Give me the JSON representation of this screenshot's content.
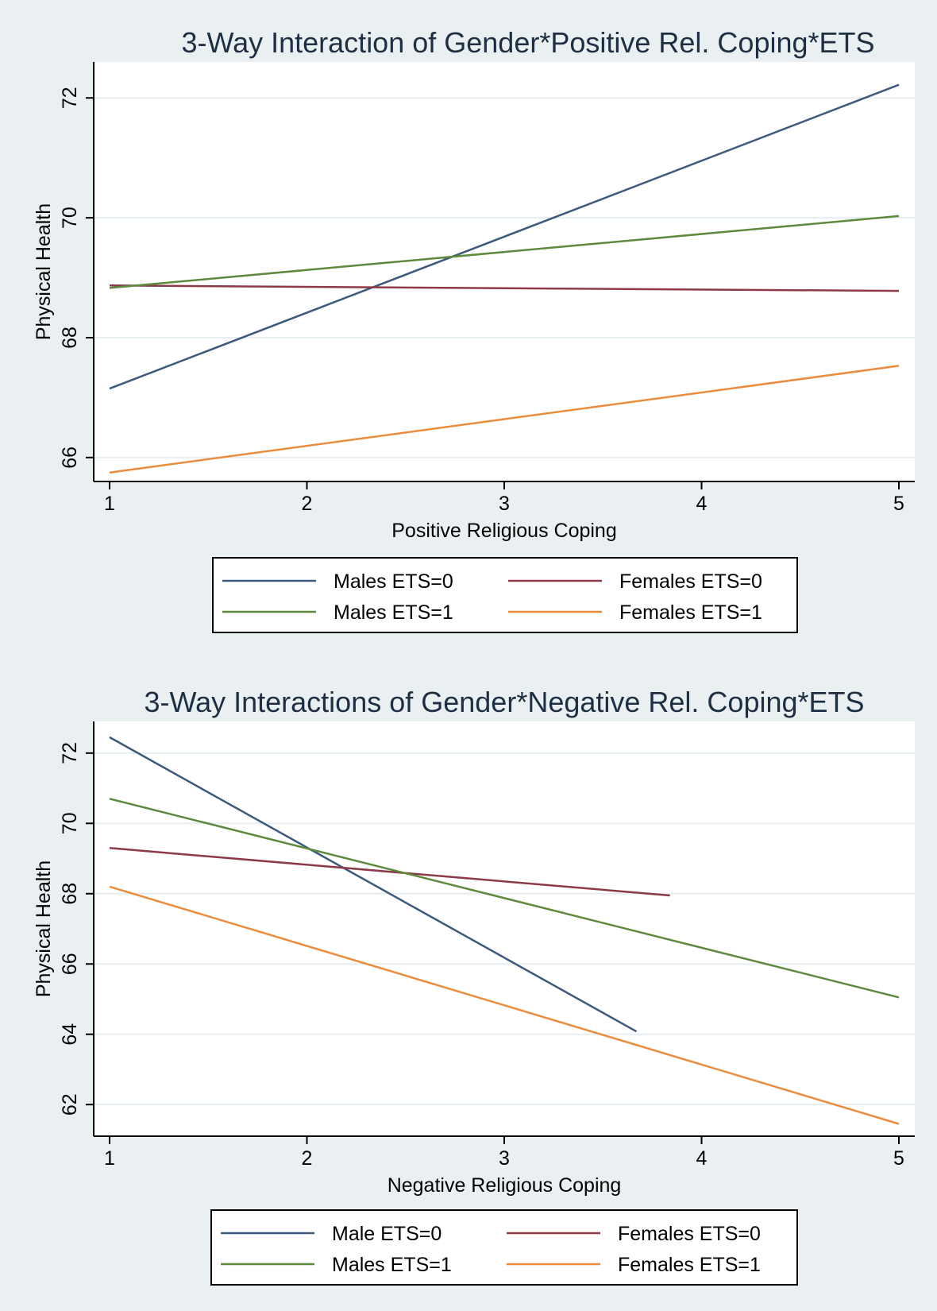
{
  "colors": {
    "background": "#eaf0f2",
    "plot_background": "#ffffff",
    "grid": "#e6eef2",
    "axis": "#000000",
    "blue": "#3c5a7e",
    "red": "#8c3a48",
    "green": "#5d8a3c",
    "orange": "#ea8c3e"
  },
  "chart_data": [
    {
      "type": "line",
      "title": "3-Way Interaction of Gender*Positive Rel. Coping*ETS",
      "xlabel": "Positive Religious Coping",
      "ylabel": "Physical Health",
      "xlim": [
        1,
        5
      ],
      "ylim": [
        65.6,
        72.6
      ],
      "xticks": [
        1,
        2,
        3,
        4,
        5
      ],
      "yticks": [
        66,
        68,
        70,
        72
      ],
      "grid": true,
      "legend_position": "bottom",
      "series": [
        {
          "name": "Males ETS=0",
          "color": "#3c5a7e",
          "x": [
            1,
            5
          ],
          "y": [
            67.15,
            72.22
          ]
        },
        {
          "name": "Females ETS=0",
          "color": "#8c3a48",
          "x": [
            1,
            5
          ],
          "y": [
            68.87,
            68.78
          ]
        },
        {
          "name": "Males ETS=1",
          "color": "#5d8a3c",
          "x": [
            1,
            5
          ],
          "y": [
            68.83,
            70.03
          ]
        },
        {
          "name": "Females ETS=1",
          "color": "#ea8c3e",
          "x": [
            1,
            5
          ],
          "y": [
            65.75,
            67.53
          ]
        }
      ]
    },
    {
      "type": "line",
      "title": "3-Way Interactions of Gender*Negative Rel. Coping*ETS",
      "xlabel": "Negative Religious Coping",
      "ylabel": "Physical Health",
      "xlim": [
        1,
        5
      ],
      "ylim": [
        61.1,
        72.9
      ],
      "xticks": [
        1,
        2,
        3,
        4,
        5
      ],
      "yticks": [
        62,
        64,
        66,
        68,
        70,
        72
      ],
      "grid": true,
      "legend_position": "bottom",
      "series": [
        {
          "name": "Male ETS=0",
          "color": "#3c5a7e",
          "x": [
            1,
            3.67
          ],
          "y": [
            72.45,
            64.08
          ]
        },
        {
          "name": "Females ETS=0",
          "color": "#8c3a48",
          "x": [
            1,
            3.84
          ],
          "y": [
            69.3,
            67.95
          ]
        },
        {
          "name": "Males ETS=1",
          "color": "#5d8a3c",
          "x": [
            1,
            5
          ],
          "y": [
            70.7,
            65.05
          ]
        },
        {
          "name": "Females ETS=1",
          "color": "#ea8c3e",
          "x": [
            1,
            5
          ],
          "y": [
            68.2,
            61.45
          ]
        }
      ]
    }
  ]
}
